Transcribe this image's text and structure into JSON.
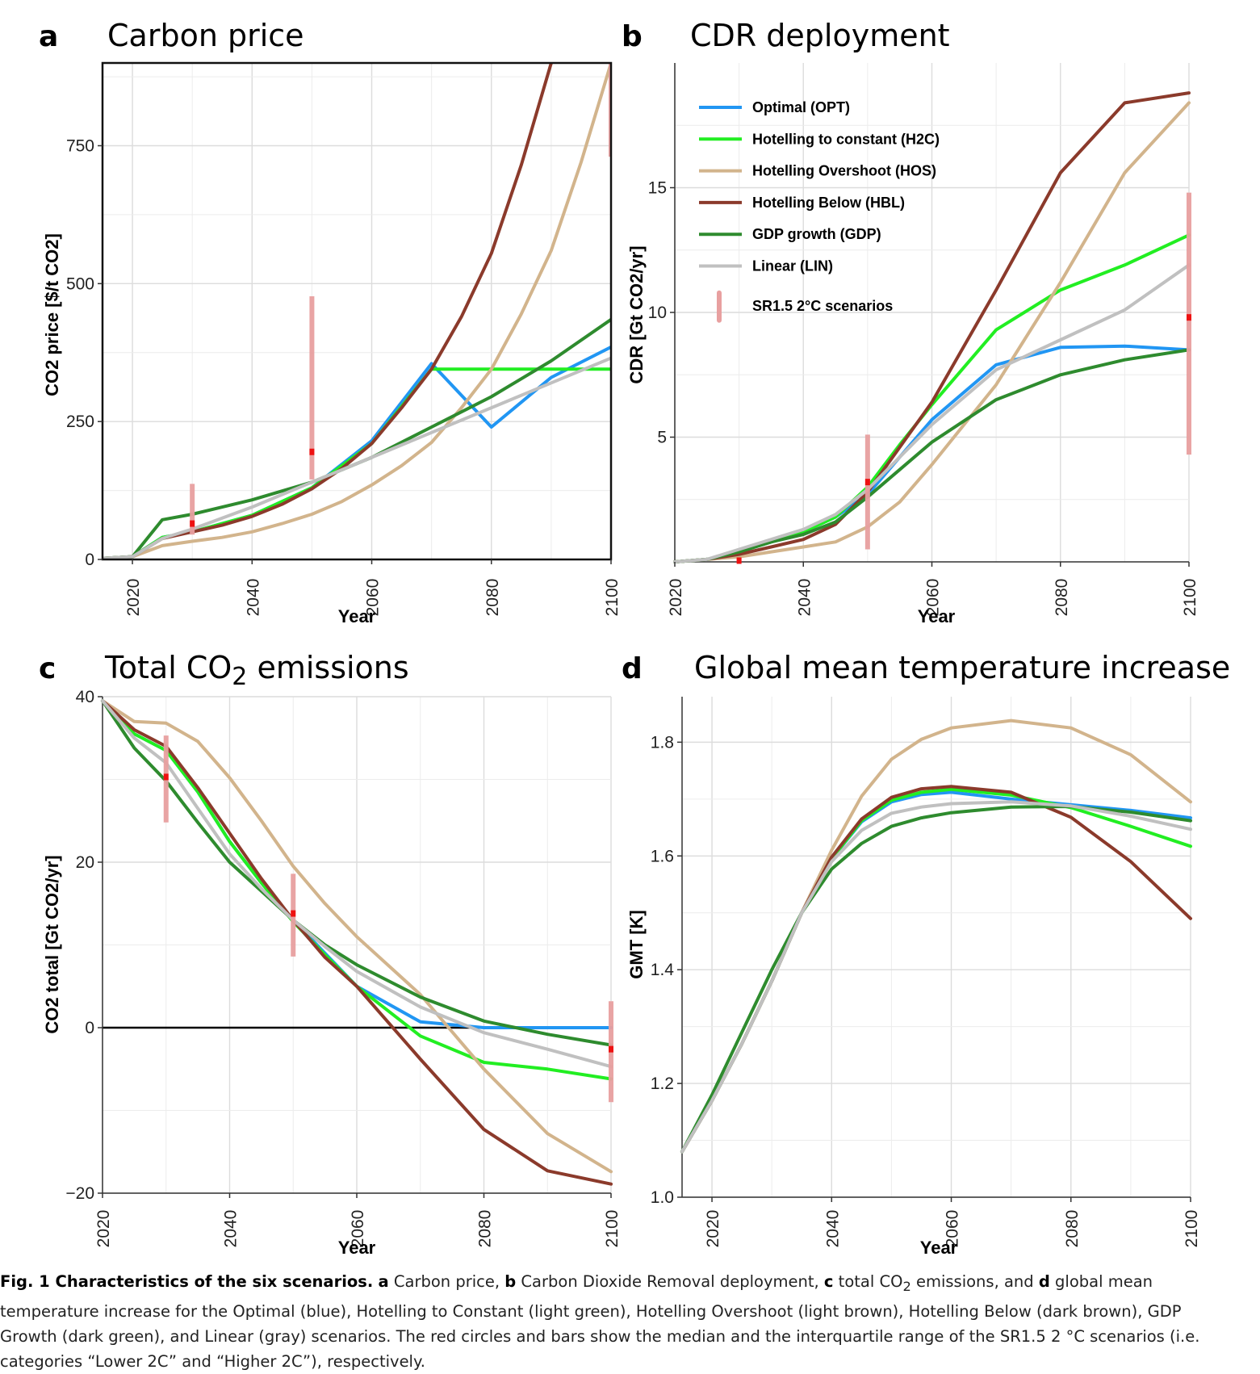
{
  "chart_data": [
    {
      "panel": "a",
      "type": "line",
      "title": "Carbon price",
      "xlabel": "Year",
      "ylabel": "CO2 price [$/t CO2]",
      "xlim": [
        2015,
        2100
      ],
      "ylim": [
        0,
        900
      ],
      "xticks": [
        2020,
        2040,
        2060,
        2080,
        2100
      ],
      "yticks": [
        0,
        250,
        500,
        750
      ],
      "grid": true,
      "series": [
        {
          "key": "OPT",
          "color": "#2196F3",
          "x": [
            2015,
            2020,
            2025,
            2030,
            2040,
            2050,
            2060,
            2070,
            2080,
            2090,
            2100
          ],
          "values": [
            2,
            5,
            40,
            50,
            80,
            130,
            215,
            355,
            240,
            330,
            385
          ]
        },
        {
          "key": "H2C",
          "color": "#22EE22",
          "x": [
            2015,
            2020,
            2025,
            2030,
            2040,
            2050,
            2060,
            2070,
            2080,
            2090,
            2100
          ],
          "values": [
            2,
            5,
            40,
            50,
            80,
            130,
            210,
            345,
            345,
            345,
            345
          ]
        },
        {
          "key": "HOS",
          "color": "#D2B48C",
          "x": [
            2015,
            2020,
            2025,
            2030,
            2035,
            2040,
            2045,
            2050,
            2055,
            2060,
            2065,
            2070,
            2075,
            2080,
            2085,
            2090,
            2095,
            2100
          ],
          "values": [
            2,
            5,
            25,
            33,
            40,
            50,
            65,
            82,
            105,
            135,
            170,
            212,
            275,
            345,
            445,
            560,
            720,
            900
          ]
        },
        {
          "key": "HBL",
          "color": "#8B3A2B",
          "x": [
            2015,
            2020,
            2025,
            2030,
            2035,
            2040,
            2045,
            2050,
            2055,
            2060,
            2065,
            2070,
            2075,
            2080,
            2085,
            2090,
            2091.5
          ],
          "values": [
            2,
            5,
            38,
            50,
            62,
            78,
            100,
            128,
            165,
            210,
            275,
            345,
            440,
            555,
            715,
            900,
            960
          ]
        },
        {
          "key": "GDP",
          "color": "#2E8B2E",
          "x": [
            2015,
            2020,
            2025,
            2030,
            2040,
            2050,
            2060,
            2070,
            2080,
            2090,
            2100
          ],
          "values": [
            2,
            5,
            72,
            82,
            108,
            140,
            185,
            240,
            295,
            360,
            435
          ]
        },
        {
          "key": "LIN",
          "color": "#C0C0C0",
          "x": [
            2015,
            2020,
            2025,
            2030,
            2040,
            2050,
            2060,
            2070,
            2080,
            2090,
            2100
          ],
          "values": [
            2,
            5,
            38,
            55,
            95,
            140,
            185,
            230,
            275,
            320,
            365
          ]
        }
      ],
      "sr15_ranges": [
        {
          "x": 2030,
          "low": 45,
          "high": 137,
          "median": 65
        },
        {
          "x": 2050,
          "low": 145,
          "high": 477,
          "median": 195
        },
        {
          "x": 2100,
          "low": 730,
          "high": 960,
          "median": null
        }
      ]
    },
    {
      "panel": "b",
      "type": "line",
      "title": "CDR deployment",
      "xlabel": "Year",
      "ylabel": "CDR [Gt CO2/yr]",
      "xlim": [
        2020,
        2100
      ],
      "ylim": [
        0,
        20
      ],
      "xticks": [
        2020,
        2040,
        2060,
        2080,
        2100
      ],
      "yticks": [
        5,
        10,
        15
      ],
      "grid": true,
      "legend_position": "top-left",
      "series": [
        {
          "key": "OPT",
          "color": "#2196F3",
          "x": [
            2020,
            2025,
            2030,
            2035,
            2040,
            2045,
            2050,
            2055,
            2060,
            2070,
            2080,
            2090,
            2100
          ],
          "values": [
            0,
            0.1,
            0.4,
            0.8,
            1.2,
            1.8,
            2.7,
            4.2,
            5.7,
            7.9,
            8.6,
            8.65,
            8.5
          ]
        },
        {
          "key": "H2C",
          "color": "#22EE22",
          "x": [
            2020,
            2025,
            2030,
            2035,
            2040,
            2045,
            2050,
            2055,
            2060,
            2070,
            2080,
            2090,
            2100
          ],
          "values": [
            0,
            0.1,
            0.4,
            0.8,
            1.2,
            1.8,
            3.0,
            4.7,
            6.3,
            9.3,
            10.9,
            11.9,
            13.1
          ]
        },
        {
          "key": "HOS",
          "color": "#D2B48C",
          "x": [
            2020,
            2025,
            2030,
            2035,
            2040,
            2045,
            2050,
            2055,
            2060,
            2070,
            2080,
            2090,
            2100
          ],
          "values": [
            0,
            0.1,
            0.2,
            0.4,
            0.6,
            0.8,
            1.4,
            2.4,
            3.9,
            7.1,
            11.2,
            15.6,
            18.4
          ]
        },
        {
          "key": "HBL",
          "color": "#8B3A2B",
          "x": [
            2020,
            2025,
            2030,
            2035,
            2040,
            2045,
            2050,
            2055,
            2060,
            2070,
            2080,
            2090,
            2100
          ],
          "values": [
            0,
            0.1,
            0.3,
            0.6,
            0.9,
            1.5,
            2.8,
            4.6,
            6.4,
            10.9,
            15.6,
            18.4,
            18.8
          ]
        },
        {
          "key": "GDP",
          "color": "#2E8B2E",
          "x": [
            2020,
            2025,
            2030,
            2035,
            2040,
            2045,
            2050,
            2055,
            2060,
            2070,
            2080,
            2090,
            2100
          ],
          "values": [
            0,
            0.1,
            0.4,
            0.8,
            1.1,
            1.6,
            2.6,
            3.7,
            4.8,
            6.5,
            7.5,
            8.1,
            8.5
          ]
        },
        {
          "key": "LIN",
          "color": "#C0C0C0",
          "x": [
            2020,
            2025,
            2030,
            2035,
            2040,
            2045,
            2050,
            2055,
            2060,
            2070,
            2080,
            2090,
            2100
          ],
          "values": [
            0,
            0.1,
            0.5,
            0.9,
            1.3,
            1.9,
            2.9,
            4.2,
            5.5,
            7.7,
            8.9,
            10.1,
            11.9
          ]
        }
      ],
      "sr15_ranges": [
        {
          "x": 2030,
          "low": 0,
          "high": 0.15,
          "median": 0.05
        },
        {
          "x": 2050,
          "low": 0.5,
          "high": 5.1,
          "median": 3.2
        },
        {
          "x": 2100,
          "low": 4.3,
          "high": 14.8,
          "median": 9.8
        }
      ]
    },
    {
      "panel": "c",
      "type": "line",
      "title": "Total CO",
      "title_sub": "2",
      "title_tail": " emissions",
      "xlabel": "Year",
      "ylabel": "CO2 total [Gt CO2/yr]",
      "xlim": [
        2020,
        2100
      ],
      "ylim": [
        -20,
        40
      ],
      "xticks": [
        2020,
        2040,
        2060,
        2080,
        2100
      ],
      "yticks": [
        -20,
        0,
        20,
        40
      ],
      "zero_line": true,
      "grid": true,
      "series": [
        {
          "key": "OPT",
          "color": "#2196F3",
          "x": [
            2020,
            2025,
            2030,
            2035,
            2040,
            2045,
            2050,
            2055,
            2060,
            2070,
            2080,
            2090,
            2100
          ],
          "values": [
            39.5,
            35.5,
            33.5,
            28.5,
            22.5,
            17.5,
            13.0,
            9.0,
            5.0,
            0.7,
            0,
            0,
            0
          ]
        },
        {
          "key": "H2C",
          "color": "#22EE22",
          "x": [
            2020,
            2025,
            2030,
            2035,
            2040,
            2045,
            2050,
            2055,
            2060,
            2070,
            2080,
            2090,
            2100
          ],
          "values": [
            39.5,
            35.5,
            33.5,
            28.5,
            22.5,
            17.5,
            12.8,
            8.8,
            5.0,
            -1.0,
            -4.2,
            -5.0,
            -6.2
          ]
        },
        {
          "key": "HOS",
          "color": "#D2B48C",
          "x": [
            2020,
            2025,
            2030,
            2035,
            2040,
            2045,
            2050,
            2055,
            2060,
            2070,
            2080,
            2090,
            2100
          ],
          "values": [
            39.5,
            37.0,
            36.8,
            34.6,
            30.2,
            25.0,
            19.5,
            15.0,
            11.0,
            4.0,
            -5.0,
            -12.8,
            -17.4
          ]
        },
        {
          "key": "HBL",
          "color": "#8B3A2B",
          "x": [
            2020,
            2025,
            2030,
            2035,
            2040,
            2045,
            2050,
            2055,
            2060,
            2070,
            2080,
            2090,
            2100
          ],
          "values": [
            39.5,
            36.0,
            34.0,
            29.0,
            23.5,
            18.0,
            13.0,
            8.5,
            5.0,
            -3.8,
            -12.3,
            -17.3,
            -18.9
          ]
        },
        {
          "key": "GDP",
          "color": "#2E8B2E",
          "x": [
            2020,
            2025,
            2030,
            2035,
            2040,
            2045,
            2050,
            2055,
            2060,
            2070,
            2080,
            2090,
            2100
          ],
          "values": [
            39.5,
            33.8,
            29.8,
            24.8,
            20.0,
            16.5,
            13.0,
            10.0,
            7.6,
            3.7,
            0.8,
            -0.8,
            -2.1
          ]
        },
        {
          "key": "LIN",
          "color": "#C0C0C0",
          "x": [
            2020,
            2025,
            2030,
            2035,
            2040,
            2045,
            2050,
            2055,
            2060,
            2070,
            2080,
            2090,
            2100
          ],
          "values": [
            39.5,
            35.0,
            32.0,
            26.5,
            21.0,
            16.8,
            13.0,
            9.8,
            6.8,
            2.5,
            -0.6,
            -2.6,
            -4.7
          ]
        }
      ],
      "sr15_ranges": [
        {
          "x": 2030,
          "low": 24.8,
          "high": 35.3,
          "median": 30.3
        },
        {
          "x": 2050,
          "low": 8.6,
          "high": 18.6,
          "median": 13.8
        },
        {
          "x": 2100,
          "low": -9.0,
          "high": 3.2,
          "median": -2.6
        }
      ]
    },
    {
      "panel": "d",
      "type": "line",
      "title": "Global mean temperature increase",
      "xlabel": "Year",
      "ylabel": "GMT [K]",
      "xlim": [
        2015,
        2100
      ],
      "ylim": [
        1.0,
        1.88
      ],
      "xticks": [
        2020,
        2040,
        2060,
        2080,
        2100
      ],
      "yticks": [
        1.0,
        1.2,
        1.4,
        1.6,
        1.8
      ],
      "ytick_labels": [
        "1.0",
        "1.2",
        "1.4",
        "1.6",
        "1.8"
      ],
      "grid": true,
      "series": [
        {
          "key": "OPT",
          "color": "#2196F3",
          "x": [
            2015,
            2020,
            2025,
            2030,
            2035,
            2040,
            2045,
            2050,
            2055,
            2060,
            2070,
            2080,
            2090,
            2100
          ],
          "values": [
            1.08,
            1.17,
            1.27,
            1.38,
            1.5,
            1.595,
            1.66,
            1.695,
            1.708,
            1.712,
            1.7,
            1.69,
            1.68,
            1.667
          ]
        },
        {
          "key": "H2C",
          "color": "#22EE22",
          "x": [
            2015,
            2020,
            2025,
            2030,
            2035,
            2040,
            2045,
            2050,
            2055,
            2060,
            2070,
            2080,
            2090,
            2100
          ],
          "values": [
            1.08,
            1.17,
            1.27,
            1.38,
            1.5,
            1.595,
            1.662,
            1.698,
            1.712,
            1.717,
            1.707,
            1.685,
            1.652,
            1.617
          ]
        },
        {
          "key": "HOS",
          "color": "#D2B48C",
          "x": [
            2015,
            2020,
            2025,
            2030,
            2035,
            2040,
            2045,
            2050,
            2055,
            2060,
            2070,
            2080,
            2090,
            2100
          ],
          "values": [
            1.08,
            1.17,
            1.27,
            1.38,
            1.5,
            1.61,
            1.705,
            1.77,
            1.805,
            1.825,
            1.838,
            1.825,
            1.778,
            1.695
          ]
        },
        {
          "key": "HBL",
          "color": "#8B3A2B",
          "x": [
            2015,
            2020,
            2025,
            2030,
            2035,
            2040,
            2045,
            2050,
            2055,
            2060,
            2070,
            2080,
            2090,
            2100
          ],
          "values": [
            1.08,
            1.17,
            1.27,
            1.38,
            1.5,
            1.598,
            1.665,
            1.703,
            1.718,
            1.722,
            1.712,
            1.668,
            1.59,
            1.49
          ]
        },
        {
          "key": "GDP",
          "color": "#2E8B2E",
          "x": [
            2015,
            2020,
            2025,
            2030,
            2035,
            2040,
            2045,
            2050,
            2055,
            2060,
            2070,
            2080,
            2090,
            2100
          ],
          "values": [
            1.08,
            1.18,
            1.29,
            1.4,
            1.5,
            1.577,
            1.622,
            1.652,
            1.667,
            1.676,
            1.686,
            1.687,
            1.677,
            1.662
          ]
        },
        {
          "key": "LIN",
          "color": "#C0C0C0",
          "x": [
            2015,
            2020,
            2025,
            2030,
            2035,
            2040,
            2045,
            2050,
            2055,
            2060,
            2070,
            2080,
            2090,
            2100
          ],
          "values": [
            1.08,
            1.17,
            1.27,
            1.38,
            1.5,
            1.59,
            1.645,
            1.675,
            1.686,
            1.692,
            1.695,
            1.688,
            1.67,
            1.647
          ]
        }
      ]
    }
  ],
  "legend": {
    "items": [
      {
        "label": "Optimal (OPT)",
        "color": "#2196F3"
      },
      {
        "label": "Hotelling to constant (H2C)",
        "color": "#22EE22"
      },
      {
        "label": "Hotelling Overshoot (HOS)",
        "color": "#D2B48C"
      },
      {
        "label": "Hotelling Below (HBL)",
        "color": "#8B3A2B"
      },
      {
        "label": "GDP growth (GDP)",
        "color": "#2E8B2E"
      },
      {
        "label": "Linear (LIN)",
        "color": "#C0C0C0"
      }
    ],
    "range_label": "SR1.5 2°C scenarios",
    "range_color": "#E8A0A0",
    "median_color": "#EE1111"
  },
  "caption": {
    "bold_lead": "Fig. 1 Characteristics of the six scenarios.",
    "letter_a": "a",
    "text_a": " Carbon price, ",
    "letter_b": "b",
    "text_b": " Carbon Dioxide Removal deployment, ",
    "letter_c": "c",
    "text_c1": " total CO",
    "text_c_sub": "2",
    "text_c2": " emissions, and ",
    "letter_d": "d",
    "text_d": " global mean temperature increase for the Optimal (blue), Hotelling to Constant (light green), Hotelling Overshoot (light brown), Hotelling Below (dark brown), GDP Growth (dark green), and Linear (gray) scenarios. The red circles and bars show the median and the interquartile range of the SR1.5 2 °C scenarios (i.e. categories “Lower 2C” and “Higher 2C”), respectively."
  }
}
